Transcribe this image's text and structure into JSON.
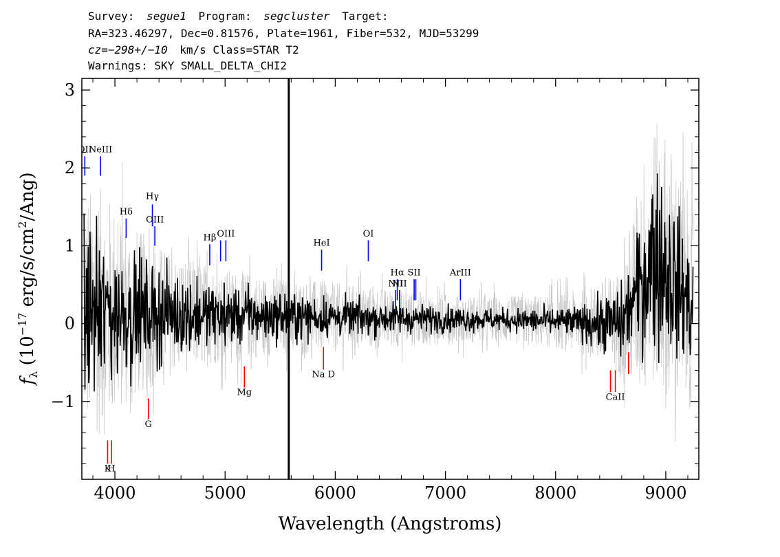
{
  "header": {
    "survey_label": "Survey:",
    "survey": "segue1",
    "program_label": "Program:",
    "program": "segcluster",
    "target_label": "Target:",
    "line2": "RA=323.46297, Dec=0.81576, Plate=1961, Fiber=532, MJD=53299",
    "cz_label": "cz=",
    "cz_value": "−298+/−10",
    "cz_rest": "km/s Class=STAR T2",
    "warnings": "Warnings: SKY SMALL_DELTA_CHI2"
  },
  "chart_data": {
    "type": "line",
    "xlabel": "Wavelength (Angstroms)",
    "ylabel_main": "f",
    "ylabel_sub": "λ",
    "ylabel_rest1": " (10",
    "ylabel_exp": "−17",
    "ylabel_rest2": " erg/s/cm",
    "ylabel_exp2": "2",
    "ylabel_rest3": "/Ang)",
    "xlim": [
      3700,
      9300
    ],
    "ylim": [
      -2.0,
      3.15
    ],
    "x_ticks": [
      4000,
      5000,
      6000,
      7000,
      8000,
      9000
    ],
    "x_tick_labels": [
      "4000",
      "5000",
      "6000",
      "7000",
      "8000",
      "9000"
    ],
    "y_ticks": [
      -1,
      0,
      1,
      2,
      3
    ],
    "y_tick_labels": [
      "−1",
      "0",
      "1",
      "2",
      "3"
    ],
    "colors": {
      "flux": "#000000",
      "error": "#c8c8c8",
      "emission": "#0000ff",
      "absorption": "#ff0000"
    },
    "spike": {
      "x": 5578,
      "y_bottom": -2.0,
      "y_top": 3.15
    },
    "error_envelope": [
      {
        "x": 3720,
        "half": 1.6
      },
      {
        "x": 3900,
        "half": 1.6
      },
      {
        "x": 4100,
        "half": 1.2
      },
      {
        "x": 4300,
        "half": 1.0
      },
      {
        "x": 4500,
        "half": 0.8
      },
      {
        "x": 5000,
        "half": 0.6
      },
      {
        "x": 5500,
        "half": 0.5
      },
      {
        "x": 6000,
        "half": 0.45
      },
      {
        "x": 6500,
        "half": 0.38
      },
      {
        "x": 7000,
        "half": 0.32
      },
      {
        "x": 7500,
        "half": 0.3
      },
      {
        "x": 8000,
        "half": 0.35
      },
      {
        "x": 8300,
        "half": 0.45
      },
      {
        "x": 8600,
        "half": 0.7
      },
      {
        "x": 8800,
        "half": 1.6
      },
      {
        "x": 9000,
        "half": 1.8
      },
      {
        "x": 9250,
        "half": 1.3
      }
    ],
    "flux_noise": [
      {
        "x": 3720,
        "amp": 0.8
      },
      {
        "x": 4000,
        "amp": 0.6
      },
      {
        "x": 4300,
        "amp": 0.45
      },
      {
        "x": 4800,
        "amp": 0.3
      },
      {
        "x": 5500,
        "amp": 0.22
      },
      {
        "x": 6500,
        "amp": 0.14
      },
      {
        "x": 7500,
        "amp": 0.1
      },
      {
        "x": 8200,
        "amp": 0.14
      },
      {
        "x": 8700,
        "amp": 0.4
      },
      {
        "x": 8900,
        "amp": 0.9
      },
      {
        "x": 9250,
        "amp": 0.5
      }
    ],
    "flux_baseline": [
      {
        "x": 3720,
        "y": 0.15
      },
      {
        "x": 4500,
        "y": 0.12
      },
      {
        "x": 6000,
        "y": 0.08
      },
      {
        "x": 7500,
        "y": 0.05
      },
      {
        "x": 8600,
        "y": 0.0
      },
      {
        "x": 8900,
        "y": 0.9
      },
      {
        "x": 9100,
        "y": 0.5
      },
      {
        "x": 9250,
        "y": 0.2
      }
    ],
    "emission_lines": [
      {
        "name": "OII",
        "display": "OII",
        "x": 3727,
        "y1": 1.9,
        "y2": 2.15,
        "label_y": 2.2
      },
      {
        "name": "NeIII",
        "display": "NeIII",
        "x": 3869,
        "y1": 1.9,
        "y2": 2.15,
        "label_y": 2.2
      },
      {
        "name": "Hdelta",
        "display": "Hδ",
        "x": 4102,
        "y1": 1.1,
        "y2": 1.35,
        "label_y": 1.4
      },
      {
        "name": "Hgamma",
        "display": "Hγ",
        "x": 4340,
        "y1": 1.25,
        "y2": 1.53,
        "label_y": 1.6
      },
      {
        "name": "OIII-4363",
        "display": "OIII",
        "x": 4363,
        "y1": 1.0,
        "y2": 1.25,
        "label_y": 1.3
      },
      {
        "name": "Hbeta",
        "display": "Hβ",
        "x": 4861,
        "y1": 0.75,
        "y2": 1.02,
        "label_y": 1.07
      },
      {
        "name": "OIII-4959",
        "display": "",
        "x": 4959,
        "y1": 0.8,
        "y2": 1.07,
        "label_y": 1.12
      },
      {
        "name": "OIII-5007",
        "display": "OIII",
        "x": 5007,
        "y1": 0.8,
        "y2": 1.07,
        "label_y": 1.12
      },
      {
        "name": "HeI",
        "display": "HeI",
        "x": 5876,
        "y1": 0.68,
        "y2": 0.95,
        "label_y": 1.0
      },
      {
        "name": "OI",
        "display": "OI",
        "x": 6300,
        "y1": 0.8,
        "y2": 1.07,
        "label_y": 1.12
      },
      {
        "name": "NII-6548",
        "display": "NII",
        "x": 6548,
        "y1": 0.15,
        "y2": 0.43,
        "label_y": 0.48
      },
      {
        "name": "Halpha",
        "display": "Hα",
        "x": 6563,
        "y1": 0.3,
        "y2": 0.57,
        "label_y": 0.62
      },
      {
        "name": "NII-6583",
        "display": "NII",
        "x": 6583,
        "y1": 0.15,
        "y2": 0.43,
        "label_y": 0.48
      },
      {
        "name": "SII-6716",
        "display": "SII",
        "x": 6716,
        "y1": 0.3,
        "y2": 0.57,
        "label_y": 0.62
      },
      {
        "name": "SII-6731",
        "display": "",
        "x": 6731,
        "y1": 0.3,
        "y2": 0.57,
        "label_y": 0.62
      },
      {
        "name": "ArIII",
        "display": "ArIII",
        "x": 7136,
        "y1": 0.3,
        "y2": 0.57,
        "label_y": 0.62
      }
    ],
    "absorption_lines": [
      {
        "name": "K",
        "display": "K",
        "x": 3934,
        "y1": -1.8,
        "y2": -1.5,
        "label_y": -1.9
      },
      {
        "name": "H",
        "display": "H",
        "x": 3969,
        "y1": -1.8,
        "y2": -1.5,
        "label_y": -1.9
      },
      {
        "name": "G",
        "display": "G",
        "x": 4304,
        "y1": -1.23,
        "y2": -0.96,
        "label_y": -1.33
      },
      {
        "name": "Mg",
        "display": "Mg",
        "x": 5175,
        "y1": -0.82,
        "y2": -0.55,
        "label_y": -0.92
      },
      {
        "name": "NaD",
        "display": "Na  D",
        "x": 5893,
        "y1": -0.59,
        "y2": -0.3,
        "label_y": -0.69
      },
      {
        "name": "CaII-8498",
        "display": "",
        "x": 8498,
        "y1": -0.88,
        "y2": -0.6,
        "label_y": -0.98
      },
      {
        "name": "CaII-8542",
        "display": "CaII",
        "x": 8542,
        "y1": -0.88,
        "y2": -0.6,
        "label_y": -0.98
      },
      {
        "name": "CaII-8662",
        "display": "",
        "x": 8662,
        "y1": -0.65,
        "y2": -0.37,
        "label_y": -0.75
      }
    ]
  }
}
